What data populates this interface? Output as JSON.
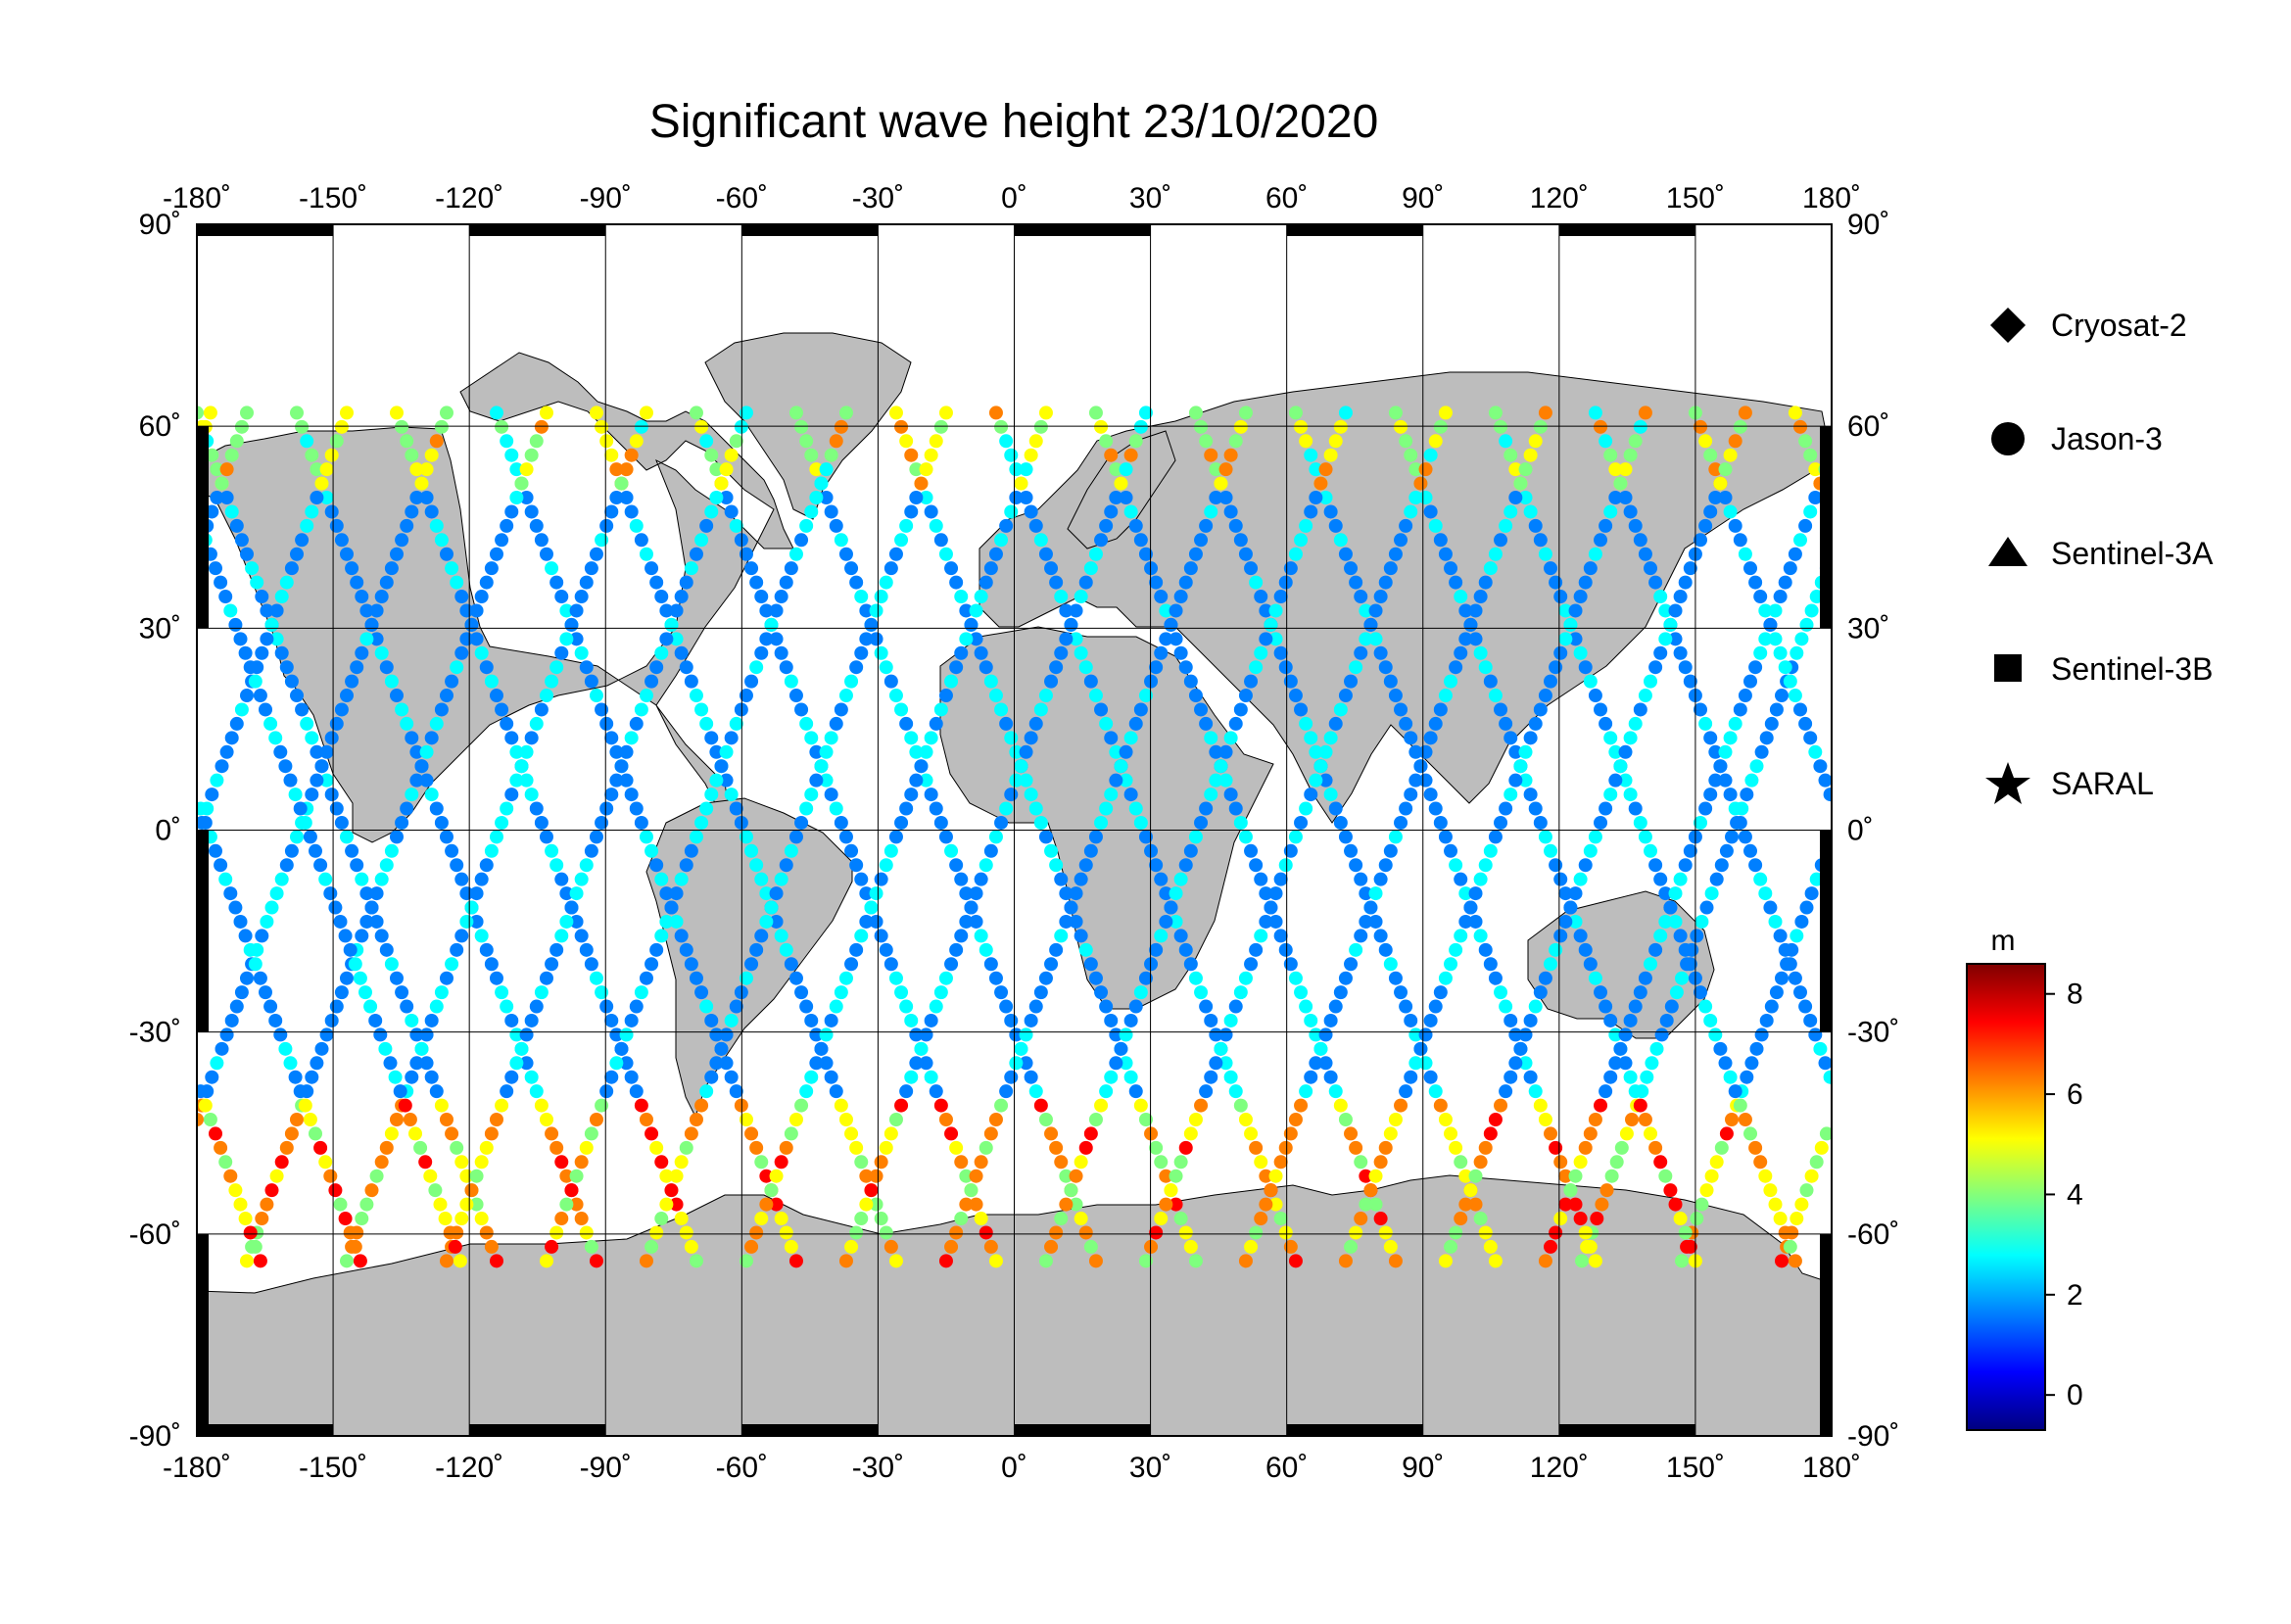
{
  "title": "Significant wave height 23/10/2020",
  "map": {
    "lon_range": [
      -180,
      180
    ],
    "lat_range": [
      -90,
      90
    ],
    "lon_ticks": [
      "-180˚",
      "-150˚",
      "-120˚",
      "-90˚",
      "-60˚",
      "-30˚",
      "0˚",
      "30˚",
      "60˚",
      "90˚",
      "120˚",
      "150˚",
      "180˚"
    ],
    "lat_ticks": [
      "90˚",
      "60˚",
      "30˚",
      "0˚",
      "-30˚",
      "-60˚",
      "-90˚"
    ],
    "lon_values": [
      -180,
      -150,
      -120,
      -90,
      -60,
      -30,
      0,
      30,
      60,
      90,
      120,
      150,
      180
    ],
    "lat_values": [
      90,
      60,
      30,
      0,
      -30,
      -60,
      -90
    ],
    "land_color": "#bdbdbd",
    "ocean_color": "#ffffff",
    "grid": true
  },
  "legend": {
    "placement": "right",
    "items": [
      {
        "label": "Cryosat-2",
        "marker": "diamond"
      },
      {
        "label": "Jason-3",
        "marker": "circle"
      },
      {
        "label": "Sentinel-3A",
        "marker": "triangle"
      },
      {
        "label": "Sentinel-3B",
        "marker": "square"
      },
      {
        "label": "SARAL",
        "marker": "star"
      }
    ]
  },
  "colorbar": {
    "unit": "m",
    "range": [
      -0.7,
      8.6
    ],
    "ticks": [
      "8",
      "6",
      "4",
      "2",
      "0"
    ],
    "tick_values": [
      8,
      6,
      4,
      2,
      0
    ],
    "colormap": [
      "#00007f",
      "#0000ff",
      "#007fff",
      "#00ffff",
      "#7fff7f",
      "#ffff00",
      "#ff7f00",
      "#ff0000",
      "#7f0000"
    ]
  }
}
